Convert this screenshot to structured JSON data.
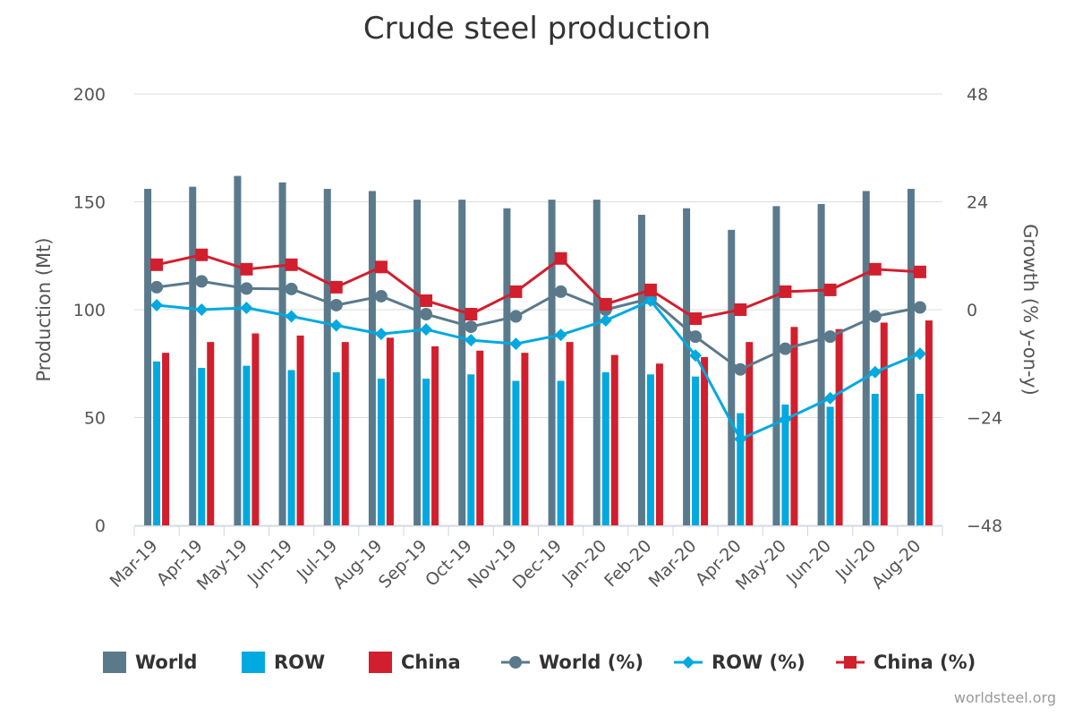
{
  "title": "Crude steel production",
  "credit": "worldsteel.org",
  "colors": {
    "world": "#5a7a8c",
    "row": "#00a9e0",
    "china": "#d11f2e",
    "grid": "#dddddd",
    "text": "#555555"
  },
  "chart_data": {
    "type": "bar",
    "categories": [
      "Mar-19",
      "Apr-19",
      "May-19",
      "Jun-19",
      "Jul-19",
      "Aug-19",
      "Sep-19",
      "Oct-19",
      "Nov-19",
      "Dec-19",
      "Jan-20",
      "Feb-20",
      "Mar-20",
      "Apr-20",
      "May-20",
      "Jun-20",
      "Jul-20",
      "Aug-20"
    ],
    "ylabel": "Production (Mt)",
    "y2label": "Growth (% y-on-y)",
    "ylim": [
      0,
      200
    ],
    "yticks": [
      0,
      50,
      100,
      150,
      200
    ],
    "y2lim": [
      -48,
      48
    ],
    "y2ticks": [
      -48,
      -24,
      0,
      24,
      48
    ],
    "grid": true,
    "legend_position": "bottom",
    "bar_series": [
      {
        "name": "World",
        "color": "#5a7a8c",
        "values": [
          156,
          157,
          162,
          159,
          156,
          155,
          151,
          151,
          147,
          151,
          151,
          144,
          147,
          137,
          148,
          149,
          155,
          156
        ]
      },
      {
        "name": "ROW",
        "color": "#00a9e0",
        "values": [
          76,
          73,
          74,
          72,
          71,
          68,
          68,
          70,
          67,
          67,
          71,
          70,
          69,
          52,
          56,
          55,
          61,
          61
        ]
      },
      {
        "name": "China",
        "color": "#d11f2e",
        "values": [
          80,
          85,
          89,
          88,
          85,
          87,
          83,
          81,
          80,
          85,
          79,
          75,
          78,
          85,
          92,
          91,
          94,
          95
        ]
      }
    ],
    "line_series": [
      {
        "name": "World (%)",
        "color": "#5a7a8c",
        "marker": "circle",
        "values": [
          5.0,
          6.3,
          4.7,
          4.6,
          1.0,
          3.0,
          -1.0,
          -3.8,
          -1.5,
          4.0,
          0.0,
          2.5,
          -6.0,
          -13.3,
          -8.7,
          -6.0,
          -1.5,
          0.5
        ]
      },
      {
        "name": "ROW (%)",
        "color": "#00a9e0",
        "marker": "diamond",
        "values": [
          1.0,
          0.0,
          0.4,
          -1.5,
          -3.5,
          -5.4,
          -4.4,
          -6.8,
          -7.6,
          -5.6,
          -2.4,
          2.0,
          -10.2,
          -28.8,
          -24.4,
          -19.7,
          -13.9,
          -9.8
        ]
      },
      {
        "name": "China (%)",
        "color": "#d11f2e",
        "marker": "square",
        "values": [
          10.0,
          12.2,
          9.0,
          10.0,
          5.0,
          9.5,
          2.0,
          -1.0,
          4.0,
          11.4,
          1.2,
          4.4,
          -2.0,
          0.0,
          4.0,
          4.4,
          9.0,
          8.4
        ]
      }
    ]
  }
}
